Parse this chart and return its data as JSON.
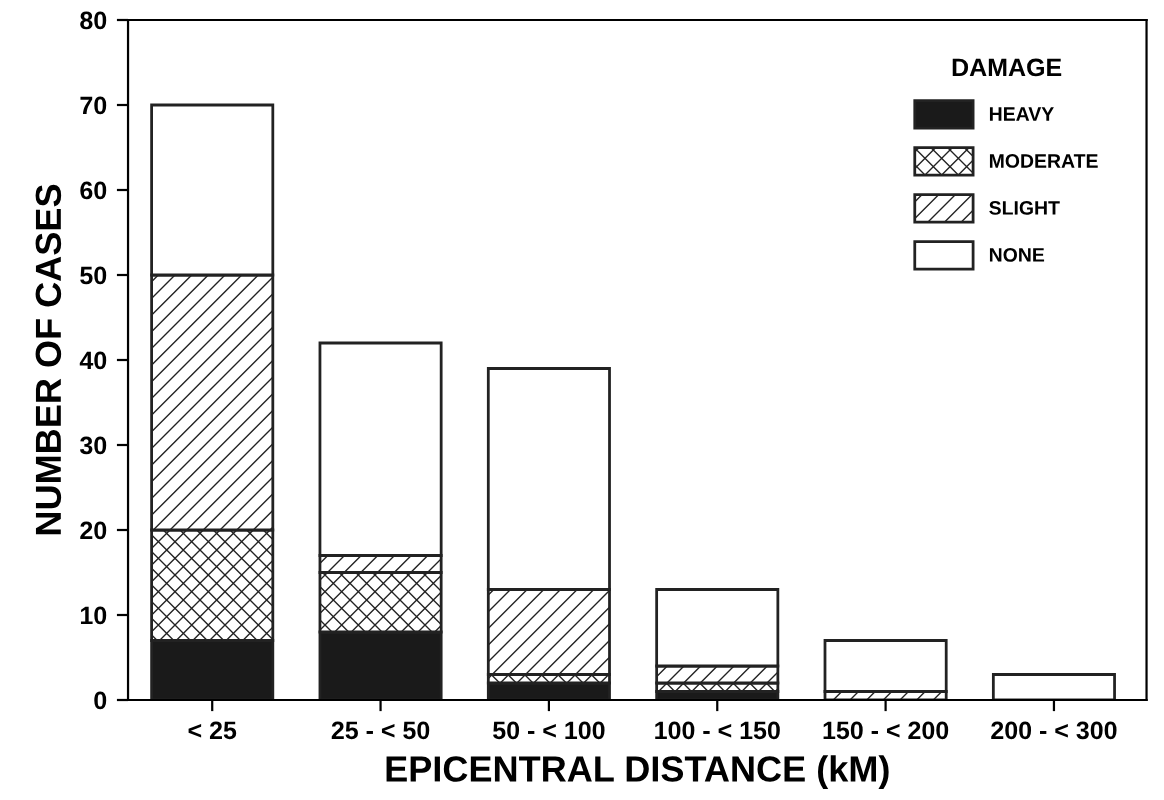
{
  "chart_data": {
    "type": "bar",
    "stacked": true,
    "xlabel": "EPICENTRAL DISTANCE (kM)",
    "ylabel": "NUMBER OF CASES",
    "legend_title": "DAMAGE",
    "categories": [
      "< 25",
      "25 - < 50",
      "50 - < 100",
      "100 - < 150",
      "150 - < 200",
      "200 - < 300"
    ],
    "series": [
      {
        "name": "HEAVY",
        "color": "#1a1a1a",
        "values": [
          7,
          8,
          2,
          1,
          0,
          0
        ]
      },
      {
        "name": "MODERATE",
        "color": "#222222",
        "values": [
          13,
          7,
          1,
          1,
          0,
          0
        ]
      },
      {
        "name": "SLIGHT",
        "color": "#222222",
        "values": [
          30,
          2,
          10,
          2,
          1,
          0
        ]
      },
      {
        "name": "NONE",
        "color": "#ffffff",
        "values": [
          20,
          25,
          26,
          9,
          6,
          3
        ]
      }
    ],
    "ylim": [
      0,
      80
    ],
    "yticks": [
      0,
      10,
      20,
      30,
      40,
      50,
      60,
      70,
      80
    ],
    "grid": false,
    "legend": "top right"
  }
}
